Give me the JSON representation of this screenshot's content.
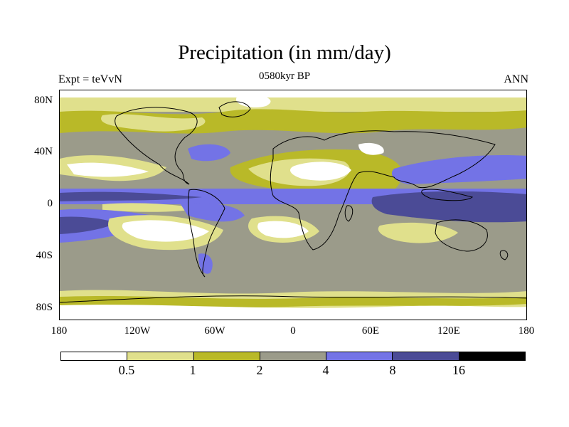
{
  "title": "Precipitation (in mm/day)",
  "subtitle": "0580kyr BP",
  "left_string": "Expt = teVvN",
  "right_string": "ANN",
  "map": {
    "lat_ticks": [
      "80N",
      "40N",
      "0",
      "40S",
      "80S"
    ],
    "lon_ticks": [
      "180",
      "120W",
      "60W",
      "0",
      "60E",
      "120E",
      "180"
    ]
  },
  "colorbar": {
    "levels": [
      "0.5",
      "1",
      "2",
      "4",
      "8",
      "16"
    ],
    "colors": [
      "#ffffff",
      "#e0e08c",
      "#b9b928",
      "#9b9b8a",
      "#7373e6",
      "#4b4b96",
      "#000000"
    ]
  }
}
